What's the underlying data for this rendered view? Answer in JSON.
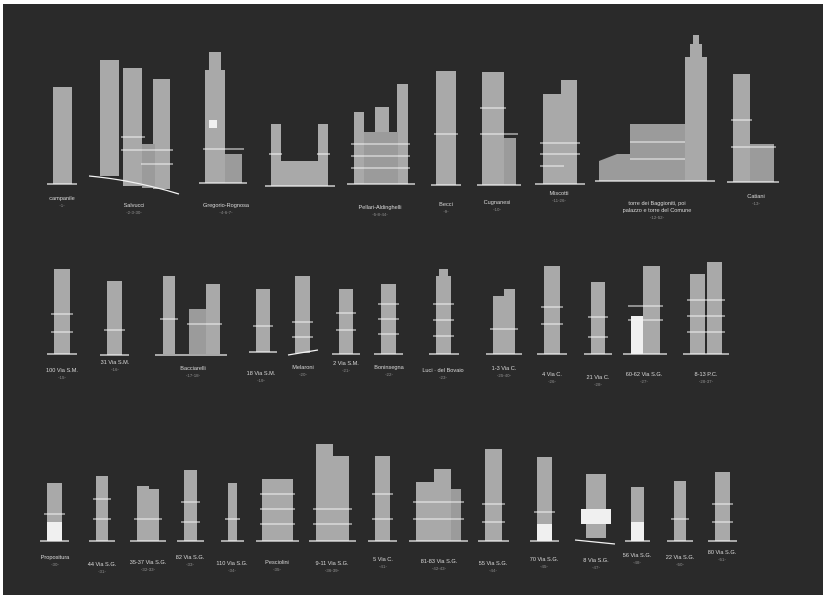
{
  "colors": {
    "background": "#2a2a2a",
    "tower": "#a9a9a9",
    "accent": "#f2f2f2",
    "label": "#d8d8d8",
    "sublabel": "#8a8a8a"
  },
  "rows": [
    {
      "items": [
        {
          "label": "campanile",
          "sub": "-1-"
        },
        {
          "label": "Salvucci",
          "sub": "-2-3-30-"
        },
        {
          "label": "Gregorio-Rognosa",
          "sub": "-4-6-7-"
        },
        {
          "label": "Pellari-Aldinghelli",
          "sub": "-5-8-44-"
        },
        {
          "label": "Becci",
          "sub": "-9-"
        },
        {
          "label": "Cugnanesi",
          "sub": "-10-"
        },
        {
          "label": "Miscotti",
          "sub": "-11-26-"
        },
        {
          "label": "torre dei Baggioniti, poi",
          "label2": "palazzo e torre del Comune",
          "sub": "-12-52-"
        },
        {
          "label": "Catiani",
          "sub": "-13-"
        }
      ]
    },
    {
      "items": [
        {
          "label": "100 Via S.M.",
          "sub": "-15-"
        },
        {
          "label": "31 Via S.M.",
          "sub": "-16-"
        },
        {
          "label": "Bacciarelli",
          "sub": "-17-18-"
        },
        {
          "label": "18 Via S.M.",
          "sub": "-19-"
        },
        {
          "label": "Melaroni",
          "sub": "-20-"
        },
        {
          "label": "2 Via S.M.",
          "sub": "-21-"
        },
        {
          "label": "Boninsegna",
          "sub": "-22-"
        },
        {
          "label": "Luci · del Bovaio",
          "sub": "-23-"
        },
        {
          "label": "1-3 Via C.",
          "sub": "-25-40-"
        },
        {
          "label": "4 Via C.",
          "sub": "-26-"
        },
        {
          "label": "21 Via C.",
          "sub": "-28-"
        },
        {
          "label": "60-62 Via S.G.",
          "sub": "-27-"
        },
        {
          "label": "8-13 P.C.",
          "sub": "-28-37-"
        }
      ]
    },
    {
      "items": [
        {
          "label": "Propositura",
          "sub": "-30-"
        },
        {
          "label": "44 Via S.G.",
          "sub": "-31-"
        },
        {
          "label": "35-37 Via S.G.",
          "sub": "-32-33-"
        },
        {
          "label": "82 Via S.G.",
          "sub": "-33-"
        },
        {
          "label": "110 Via S.G.",
          "sub": "-34-"
        },
        {
          "label": "Pesciolini",
          "sub": "-35-"
        },
        {
          "label": "9-11 Via S.G.",
          "sub": "-36-39-"
        },
        {
          "label": "5 Via C.",
          "sub": "-41-"
        },
        {
          "label": "81-83 Via S.G.",
          "sub": "-42-43-"
        },
        {
          "label": "55 Via S.G.",
          "sub": "-44-"
        },
        {
          "label": "70 Via S.G.",
          "sub": "-45-"
        },
        {
          "label": "8 Via S.G.",
          "sub": "-47-"
        },
        {
          "label": "56 Via S.G.",
          "sub": "-48-"
        },
        {
          "label": "22 Via S.G.",
          "sub": "-50-"
        },
        {
          "label": "80 Via S.G.",
          "sub": "-51-"
        }
      ]
    }
  ]
}
